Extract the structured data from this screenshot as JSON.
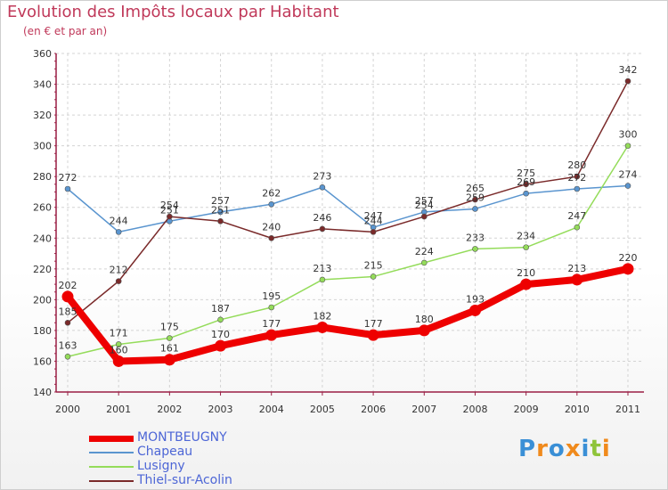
{
  "title": "Evolution des Impôts locaux par Habitant",
  "subtitle": "(en € et par an)",
  "logo_text": "Proxiti",
  "colors": {
    "title": "#c0395a",
    "legend_text": "#4d66d6",
    "axis": "#9a1f45",
    "grid": "#d4d4d4"
  },
  "chart_data": {
    "type": "line",
    "title": "Evolution des Impôts locaux par Habitant",
    "subtitle": "(en € et par an)",
    "xlabel": "",
    "ylabel": "",
    "x": [
      "2000",
      "2001",
      "2002",
      "2003",
      "2004",
      "2005",
      "2006",
      "2007",
      "2008",
      "2009",
      "2010",
      "2011"
    ],
    "ylim": [
      140,
      360
    ],
    "yticks": [
      140,
      160,
      180,
      200,
      220,
      240,
      260,
      280,
      300,
      320,
      340,
      360
    ],
    "grid": true,
    "legend_position": "bottom-left",
    "series": [
      {
        "name": "MONTBEUGNY",
        "color": "#ee0000",
        "values": [
          202,
          160,
          161,
          170,
          177,
          182,
          177,
          180,
          193,
          210,
          213,
          220
        ]
      },
      {
        "name": "Chapeau",
        "color": "#5a95cf",
        "values": [
          272,
          244,
          251,
          257,
          262,
          273,
          247,
          257,
          259,
          269,
          272,
          274
        ]
      },
      {
        "name": "Lusigny",
        "color": "#94dc5a",
        "values": [
          163,
          171,
          175,
          187,
          195,
          213,
          215,
          224,
          233,
          234,
          247,
          300
        ]
      },
      {
        "name": "Thiel-sur-Acolin",
        "color": "#7a2a2a",
        "values": [
          185,
          212,
          254,
          251,
          240,
          246,
          244,
          254,
          265,
          275,
          280,
          342
        ]
      }
    ]
  }
}
